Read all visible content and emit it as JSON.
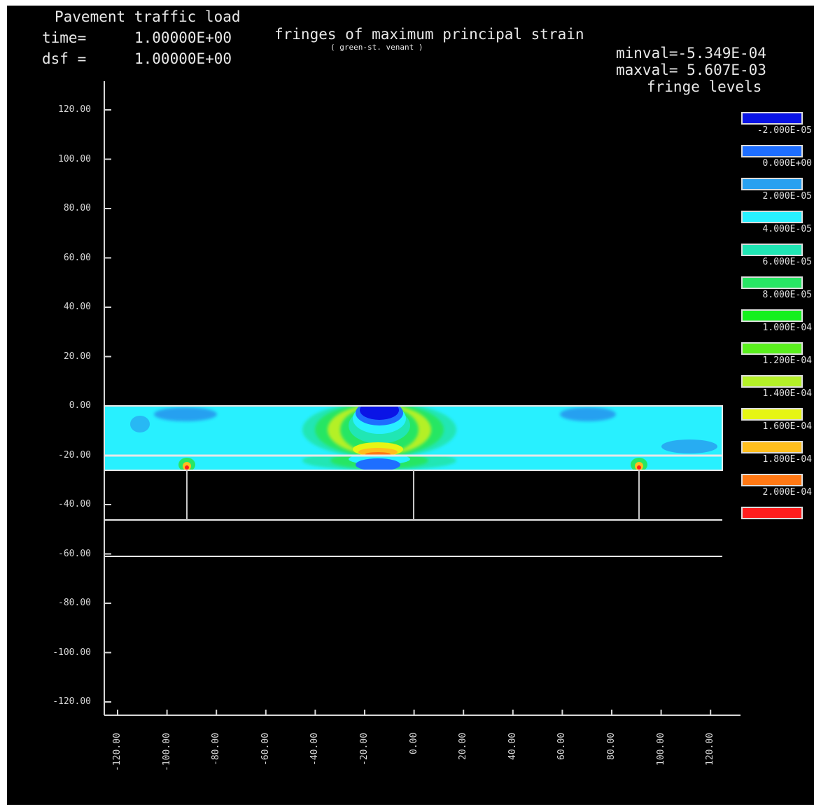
{
  "header": {
    "title": "Pavement traffic load",
    "time_label": "time=",
    "time_value": "1.00000E+00",
    "dsf_label": "dsf =",
    "dsf_value": "1.00000E+00",
    "plot_title": "fringes of maximum principal strain",
    "plot_subtitle": "( green-st. venant )",
    "minval": "minval=-5.349E-04",
    "maxval": "maxval= 5.607E-03",
    "fringe_levels": "fringe levels"
  },
  "axes": {
    "y_ticks": [
      "120.00",
      "100.00",
      "80.00",
      "60.00",
      "40.00",
      "20.00",
      "0.00",
      "-20.00",
      "-40.00",
      "-60.00",
      "-80.00",
      "-100.00",
      "-120.00"
    ],
    "x_ticks": [
      "-120.00",
      "-100.00",
      "-80.00",
      "-60.00",
      "-40.00",
      "-20.00",
      "0.00",
      "20.00",
      "40.00",
      "60.00",
      "80.00",
      "100.00",
      "120.00"
    ]
  },
  "legend": [
    {
      "color": "#0a14e6",
      "label": "-2.000E-05"
    },
    {
      "color": "#1e6eff",
      "label": "0.000E+00"
    },
    {
      "color": "#28a0f0",
      "label": "2.000E-05"
    },
    {
      "color": "#28f0ff",
      "label": "4.000E-05"
    },
    {
      "color": "#20e6b4",
      "label": "6.000E-05"
    },
    {
      "color": "#28e664",
      "label": "8.000E-05"
    },
    {
      "color": "#14f01e",
      "label": "1.000E-04"
    },
    {
      "color": "#5af01e",
      "label": "1.200E-04"
    },
    {
      "color": "#b4f028",
      "label": "1.400E-04"
    },
    {
      "color": "#e6f514",
      "label": "1.600E-04"
    },
    {
      "color": "#ffbe1e",
      "label": "1.800E-04"
    },
    {
      "color": "#ff7814",
      "label": "2.000E-04"
    },
    {
      "color": "#ff1e1e",
      "label": ""
    }
  ]
}
